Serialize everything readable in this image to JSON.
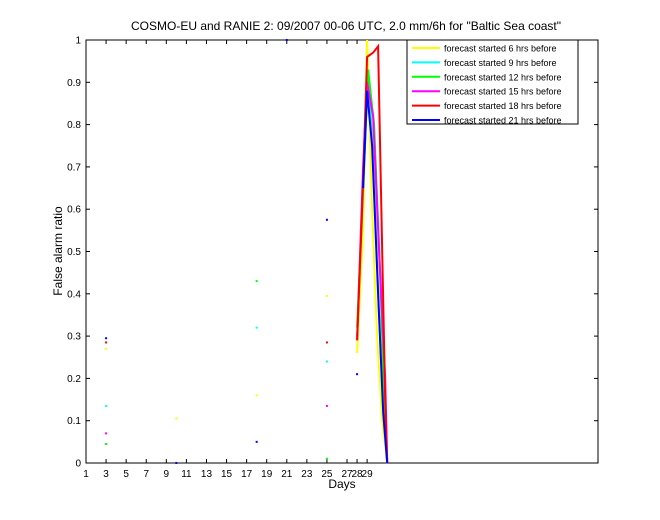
{
  "chart_data": {
    "type": "line",
    "title": "COSMO-EU and RANIE 2: 09/2007 00-06 UTC, 2.0 mm/6h for \"Baltic Sea coast\"",
    "xlabel": "Days",
    "ylabel": "False alarm ratio",
    "xlim": [
      1,
      52
    ],
    "ylim": [
      0,
      1
    ],
    "xticks": [
      1,
      3,
      5,
      7,
      9,
      11,
      13,
      15,
      17,
      19,
      21,
      23,
      25,
      27,
      28,
      29
    ],
    "xtick_labels": [
      "1",
      "3",
      "5",
      "7",
      "9",
      "11",
      "13",
      "15",
      "17",
      "19",
      "21",
      "23",
      "25",
      "27",
      "28",
      "29"
    ],
    "yticks": [
      0,
      0.1,
      0.2,
      0.3,
      0.4,
      0.5,
      0.6,
      0.7,
      0.8,
      0.9,
      1
    ],
    "ytick_labels": [
      "0",
      "0.1",
      "0.2",
      "0.3",
      "0.4",
      "0.5",
      "0.6",
      "0.7",
      "0.8",
      "0.9",
      "1"
    ],
    "grid": false,
    "legend_position": "top-right",
    "series": [
      {
        "name": "forecast started 6 hrs before",
        "color": "#ffff00",
        "points": [
          [
            3,
            0.27
          ],
          [
            10,
            0.105
          ],
          [
            18,
            0.16
          ],
          [
            25,
            0.395
          ]
        ],
        "line": [
          [
            28,
            0.26
          ],
          [
            28.6,
            0.55
          ],
          [
            29,
            1.0
          ],
          [
            29.5,
            0.6
          ],
          [
            30,
            0.3
          ],
          [
            30.5,
            0.1
          ],
          [
            31,
            0.0
          ]
        ]
      },
      {
        "name": "forecast started 9 hrs before",
        "color": "#00ffff",
        "points": [
          [
            3,
            0.135
          ],
          [
            18,
            0.32
          ],
          [
            25,
            0.24
          ]
        ],
        "line": [
          [
            28,
            0.3
          ],
          [
            28.7,
            0.7
          ],
          [
            29.1,
            0.93
          ],
          [
            29.6,
            0.72
          ],
          [
            30.2,
            0.35
          ],
          [
            30.6,
            0.12
          ],
          [
            31,
            0.0
          ]
        ]
      },
      {
        "name": "forecast started 12 hrs before",
        "color": "#00ff00",
        "points": [
          [
            3,
            0.045
          ],
          [
            18,
            0.43
          ],
          [
            25,
            0.01
          ]
        ],
        "line": [
          [
            28,
            0.32
          ],
          [
            28.6,
            0.65
          ],
          [
            29.1,
            0.93
          ],
          [
            29.7,
            0.8
          ],
          [
            30.3,
            0.45
          ],
          [
            30.7,
            0.15
          ],
          [
            31,
            0.0
          ]
        ]
      },
      {
        "name": "forecast started 15 hrs before",
        "color": "#ff00ff",
        "points": [
          [
            3,
            0.07
          ],
          [
            25,
            0.135
          ]
        ],
        "line": [
          [
            28,
            0.29
          ],
          [
            28.6,
            0.7
          ],
          [
            29,
            0.9
          ],
          [
            29.6,
            0.82
          ],
          [
            30.2,
            0.5
          ],
          [
            30.8,
            0.2
          ],
          [
            31,
            0.0
          ]
        ]
      },
      {
        "name": "forecast started 18 hrs before",
        "color": "#ff0000",
        "points": [
          [
            3,
            0.285
          ],
          [
            25,
            0.285
          ]
        ],
        "line": [
          [
            28,
            0.29
          ],
          [
            28.5,
            0.6
          ],
          [
            29,
            0.96
          ],
          [
            29.6,
            0.97
          ],
          [
            30.1,
            0.985
          ],
          [
            30.5,
            0.5
          ],
          [
            30.8,
            0.15
          ],
          [
            31,
            0.0
          ]
        ]
      },
      {
        "name": "forecast started 21 hrs before",
        "color": "#0000ff",
        "points": [
          [
            3,
            0.295
          ],
          [
            10,
            0.0
          ],
          [
            18,
            0.05
          ],
          [
            21,
            1.0
          ],
          [
            25,
            0.575
          ],
          [
            28,
            0.21
          ]
        ],
        "line": [
          [
            28.6,
            0.65
          ],
          [
            29,
            0.88
          ],
          [
            29.5,
            0.75
          ],
          [
            30.1,
            0.4
          ],
          [
            30.6,
            0.12
          ],
          [
            31,
            0.0
          ]
        ]
      }
    ]
  }
}
